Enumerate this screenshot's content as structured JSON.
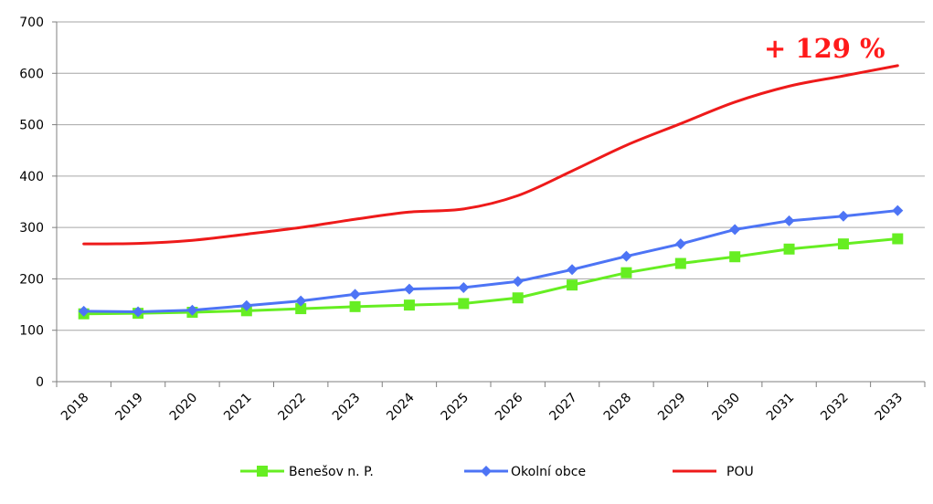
{
  "chart_data": {
    "type": "line",
    "categories": [
      "2018",
      "2019",
      "2020",
      "2021",
      "2022",
      "2023",
      "2024",
      "2025",
      "2026",
      "2027",
      "2028",
      "2029",
      "2030",
      "2031",
      "2032",
      "2033"
    ],
    "ylim": [
      0,
      700
    ],
    "yticks": [
      0,
      100,
      200,
      300,
      400,
      500,
      600,
      700
    ],
    "grid": true,
    "legend_position": "bottom",
    "annotation": "+ 129 %",
    "series": [
      {
        "name": "Benešov n. P.",
        "color": "#66ee22",
        "marker": "square",
        "values": [
          132,
          133,
          135,
          138,
          142,
          146,
          149,
          152,
          163,
          188,
          212,
          230,
          243,
          258,
          268,
          278
        ]
      },
      {
        "name": "Okolní obce",
        "color": "#4d74f5",
        "marker": "diamond",
        "values": [
          137,
          136,
          139,
          148,
          157,
          170,
          180,
          183,
          195,
          218,
          244,
          268,
          296,
          313,
          322,
          333
        ]
      },
      {
        "name": "POU",
        "color": "#ee1a1a",
        "marker": "none",
        "values": [
          268,
          269,
          275,
          287,
          300,
          316,
          330,
          336,
          362,
          410,
          460,
          502,
          544,
          575,
          595,
          615
        ]
      }
    ]
  }
}
